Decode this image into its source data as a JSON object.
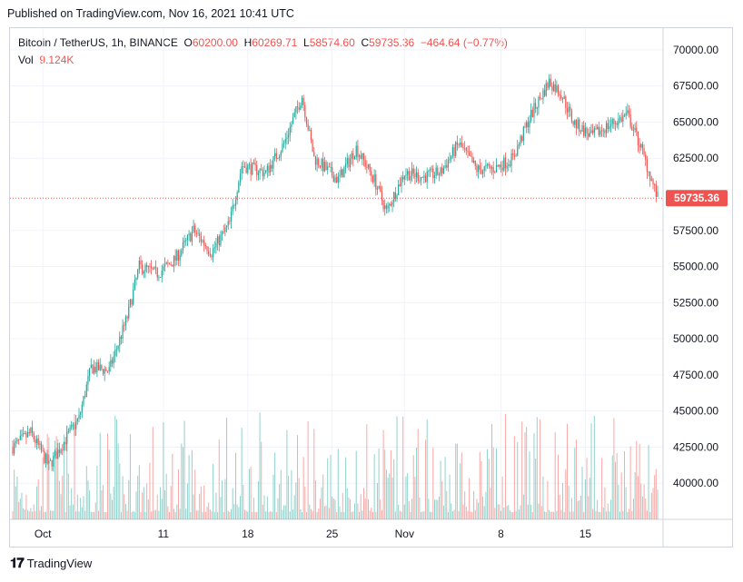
{
  "published": "Published on TradingView.com, Nov 16, 2021 10:41 UTC",
  "legend": {
    "symbol": "Bitcoin / TetherUS, 1h, BINANCE",
    "o_label": "O",
    "o_value": "60200.00",
    "h_label": "H",
    "h_value": "60269.71",
    "l_label": "L",
    "l_value": "58574.60",
    "c_label": "C",
    "c_value": "59735.36",
    "change": "−464.64 (−0.77%)",
    "vol_label": "Vol",
    "vol_value": "9.124K"
  },
  "footer": {
    "brand": "TradingView"
  },
  "colors": {
    "up": "#26a69a",
    "down": "#ef5350",
    "grid": "#f0f3fa",
    "axis_text": "#131722"
  },
  "chart_data": {
    "type": "candlestick",
    "x_ticks": [
      "Oct",
      "11",
      "18",
      "25",
      "Nov",
      "8",
      "15"
    ],
    "y_ticks": [
      "70000.00",
      "67500.00",
      "65000.00",
      "62500.00",
      "57500.00",
      "55000.00",
      "52500.00",
      "50000.00",
      "47500.00",
      "45000.00",
      "42500.00",
      "40000.00"
    ],
    "ylim": [
      37500,
      71500
    ],
    "last_price": "59735.36",
    "close_path": [
      {
        "day": 0,
        "price": 42500
      },
      {
        "day": 1.5,
        "price": 43500
      },
      {
        "day": 3,
        "price": 41200
      },
      {
        "day": 4.5,
        "price": 43200
      },
      {
        "day": 5.5,
        "price": 44500
      },
      {
        "day": 6.5,
        "price": 48000
      },
      {
        "day": 8,
        "price": 47800
      },
      {
        "day": 9.5,
        "price": 51500
      },
      {
        "day": 10.5,
        "price": 55000
      },
      {
        "day": 12,
        "price": 54500
      },
      {
        "day": 13.5,
        "price": 55500
      },
      {
        "day": 15,
        "price": 57500
      },
      {
        "day": 16.5,
        "price": 56000
      },
      {
        "day": 18,
        "price": 58000
      },
      {
        "day": 19,
        "price": 62000
      },
      {
        "day": 21,
        "price": 61500
      },
      {
        "day": 22.5,
        "price": 63500
      },
      {
        "day": 24,
        "price": 66800
      },
      {
        "day": 25,
        "price": 62500
      },
      {
        "day": 27,
        "price": 61000
      },
      {
        "day": 28.5,
        "price": 63200
      },
      {
        "day": 30,
        "price": 61000
      },
      {
        "day": 31,
        "price": 58800
      },
      {
        "day": 32.5,
        "price": 61500
      },
      {
        "day": 34,
        "price": 61200
      },
      {
        "day": 35.5,
        "price": 61500
      },
      {
        "day": 37,
        "price": 63500
      },
      {
        "day": 38.5,
        "price": 61700
      },
      {
        "day": 40,
        "price": 61800
      },
      {
        "day": 41.5,
        "price": 62500
      },
      {
        "day": 43,
        "price": 65500
      },
      {
        "day": 44.5,
        "price": 67800
      },
      {
        "day": 45.5,
        "price": 67000
      },
      {
        "day": 46.5,
        "price": 65000
      },
      {
        "day": 48,
        "price": 64000
      },
      {
        "day": 49.5,
        "price": 64800
      },
      {
        "day": 51,
        "price": 65500
      },
      {
        "day": 52,
        "price": 63500
      },
      {
        "day": 53.5,
        "price": 59735
      }
    ],
    "day_axis": {
      "start_day": 0,
      "end_day": 53.5,
      "tick_days": [
        2.5,
        12.5,
        19.5,
        26.5,
        32.5,
        40.5,
        47.5
      ]
    }
  }
}
